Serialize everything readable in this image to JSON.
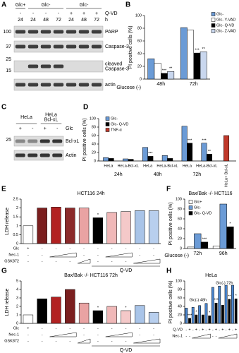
{
  "chart_data": [
    {
      "panel": "B",
      "type": "bar",
      "ylabel": "PI positive cells (%)",
      "xlabel": "Glucose (-)",
      "categories": [
        "48h",
        "72h"
      ],
      "series": [
        {
          "name": "Glc-",
          "color": "#6b9bd6",
          "values": [
            32,
            81
          ]
        },
        {
          "name": "Glc- Y-VAD",
          "color": "#ffffff",
          "values": [
            25,
            77
          ]
        },
        {
          "name": "Glc- Q-VD",
          "color": "#000000",
          "values": [
            9,
            41
          ]
        },
        {
          "name": "Glc- Z-VAD",
          "color": "#c9d7ee",
          "values": [
            12,
            43
          ]
        }
      ],
      "ylim": [
        0,
        100
      ],
      "yticks": [
        0,
        20,
        40,
        60,
        80,
        100
      ],
      "annotations": [
        "***",
        "**",
        "***",
        "**"
      ]
    },
    {
      "panel": "D",
      "type": "bar",
      "ylabel": "PI positive cells (%)",
      "categories": [
        "HeLa",
        "HeLa-Bcl-xL",
        "HeLa",
        "HeLa-Bcl-xL",
        "HeLa",
        "HeLa-Bcl-xL",
        "HeLa+ Bcl-xL"
      ],
      "group_labels": [
        "24h",
        "48h",
        "72h"
      ],
      "series": [
        {
          "name": "Glc-",
          "color": "#6b9bd6",
          "values": [
            8,
            5,
            32,
            13,
            82,
            42,
            null
          ]
        },
        {
          "name": "Glc- Q-VD",
          "color": "#000000",
          "values": [
            6,
            4,
            11,
            6,
            42,
            16,
            null
          ]
        },
        {
          "name": "TNF-α",
          "color": "#c0392b",
          "values": [
            null,
            null,
            null,
            null,
            null,
            null,
            60
          ]
        }
      ],
      "ylim": [
        0,
        100
      ],
      "yticks": [
        0,
        20,
        40,
        60,
        80,
        100
      ],
      "annotations": [
        "***",
        "***",
        "***",
        "**"
      ]
    },
    {
      "panel": "E",
      "type": "bar",
      "title": "HCT116 24h",
      "ylabel": "LDH release",
      "values": [
        1,
        2.0,
        2.05,
        2.0,
        2.0,
        1.45,
        1.75,
        1.8,
        1.85,
        1.85
      ],
      "colors": [
        "#ffffff",
        "#7b1f1f",
        "#b22222",
        "#8b2a2a",
        "#e9a3a3",
        "#000000",
        "#f0b8b8",
        "#f4c9c9",
        "#a9c4e8",
        "#b8cfee"
      ],
      "ylim": [
        0,
        2.5
      ],
      "yticks": [
        0,
        0.5,
        1,
        1.5,
        2,
        2.5
      ],
      "treatments": [
        {
          "label": "Glc",
          "marks": [
            "+",
            "-",
            "-",
            "-",
            "-",
            "-",
            "-",
            "-",
            "-",
            "-"
          ]
        },
        {
          "label": "Nec-1",
          "marks": [
            "-",
            "-",
            null,
            null,
            "-",
            "-",
            null,
            null,
            "-",
            "-"
          ]
        },
        {
          "label": "GSK872",
          "marks": [
            "-",
            "-",
            "-",
            "-",
            null,
            "-",
            "-",
            "-",
            null,
            null
          ]
        }
      ],
      "group_label": "Q-VD",
      "annotations": [
        "*"
      ]
    },
    {
      "panel": "F",
      "type": "bar",
      "title": "Bax/Bak -/- HCT116",
      "ylabel": "PI positive cells (%)",
      "xlabel": "Glucose (-)",
      "categories": [
        "72h",
        "96h"
      ],
      "series": [
        {
          "name": "Glc+",
          "color": "#ffffff",
          "values": [
            3,
            5
          ]
        },
        {
          "name": "Glc-",
          "color": "#6b9bd6",
          "values": [
            30,
            90
          ]
        },
        {
          "name": "Glc- Q-VD",
          "color": "#000000",
          "values": [
            13,
            44
          ]
        }
      ],
      "ylim": [
        0,
        100
      ],
      "yticks": [
        0,
        20,
        40,
        60,
        80,
        100
      ],
      "annotations": [
        "***",
        "*"
      ]
    },
    {
      "panel": "G",
      "type": "bar",
      "title": "Bax/Bak -/- HCT116 72h",
      "ylabel": "LDH release",
      "values": [
        1,
        2.9,
        3.1,
        4.0,
        2.4,
        1.5,
        2.0,
        1.5,
        2.1,
        1.3
      ],
      "colors": [
        "#ffffff",
        "#000000",
        "#b22222",
        "#7b1f1f",
        "#e9a3a3",
        "#000000",
        "#f0b8b8",
        "#f4c9c9",
        "#a9c4e8",
        "#b8cfee"
      ],
      "ylim": [
        0,
        5
      ],
      "yticks": [
        0,
        1,
        2,
        3,
        4,
        5
      ],
      "treatments": [
        {
          "label": "Glc",
          "marks": [
            "+",
            "-",
            "-",
            "-",
            "-",
            "-",
            "-",
            "-",
            "-",
            "-"
          ]
        },
        {
          "label": "Nec-1",
          "marks": [
            "-",
            "-",
            null,
            null,
            "-",
            "-",
            null,
            null,
            "-",
            "-"
          ]
        },
        {
          "label": "GSK872",
          "marks": [
            "-",
            "-",
            "-",
            "-",
            null,
            "-",
            "-",
            "-",
            null,
            null
          ]
        }
      ],
      "group_label": "Q-VD",
      "annotations": [
        "*",
        "*"
      ]
    },
    {
      "panel": "H",
      "type": "bar",
      "title": "HeLa",
      "ylabel": "PI positive cells (%)",
      "values": [
        36,
        12,
        38,
        20,
        42,
        20,
        47,
        18,
        85,
        48,
        88,
        43,
        90,
        57,
        90,
        58
      ],
      "colors": [
        "#4a86d0",
        "#000000",
        "#4a86d0",
        "#000000",
        "#4a86d0",
        "#000000",
        "#4a86d0",
        "#000000",
        "#4a86d0",
        "#000000",
        "#4a86d0",
        "#000000",
        "#4a86d0",
        "#000000",
        "#4a86d0",
        "#000000"
      ],
      "ylim": [
        0,
        100
      ],
      "yticks": [
        0,
        20,
        40,
        60,
        80,
        100
      ],
      "group_labels": [
        "Glc(-) 48h",
        "Glc(-) 72h"
      ],
      "treatments": [
        {
          "label": "Q-VD",
          "marks": [
            "-",
            "+",
            "-",
            "+",
            "-",
            "+",
            "-",
            "+",
            "-",
            "+",
            "-",
            "+",
            "-",
            "+",
            "-",
            "+"
          ]
        },
        {
          "label": "Nec-1",
          "marks": [
            "-",
            "-",
            null,
            null,
            null,
            null,
            null,
            null,
            "-",
            "-",
            null,
            null,
            null,
            null,
            null,
            null
          ]
        }
      ],
      "annotations": [
        "***",
        "*",
        "*",
        "***",
        "**",
        "*"
      ]
    }
  ],
  "blots": [
    {
      "panel": "A",
      "conditions": [
        "Glc+",
        "Glc-",
        "Glc-"
      ],
      "qvd_label": "Q-VD",
      "qvd": [
        "-",
        "-",
        "-",
        "-",
        "+",
        "+",
        "+"
      ],
      "time_label": "h",
      "times": [
        "24",
        "24",
        "48",
        "72",
        "24",
        "48",
        "72"
      ],
      "mw": [
        "100",
        "37",
        "25",
        "15"
      ],
      "bands": [
        "PARP",
        "Caspase-3",
        {
          "lines": [
            "cleaved",
            "Caspase-3"
          ]
        },
        "actin"
      ]
    },
    {
      "panel": "C",
      "cells": [
        "HeLa",
        {
          "lines": [
            "HeLa",
            "Bcl-xL"
          ]
        }
      ],
      "glc_label": "Glc",
      "glc": [
        "+",
        "-",
        "+",
        "-"
      ],
      "mw": [
        "25"
      ],
      "bands": [
        "Bcl-xL",
        "Actin"
      ]
    }
  ]
}
